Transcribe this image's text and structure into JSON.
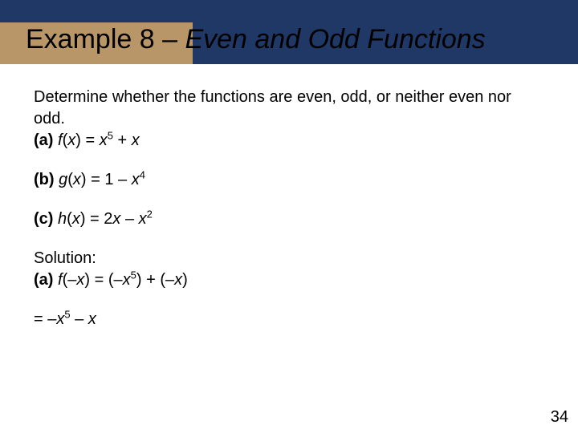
{
  "colors": {
    "header_dark": "#1f3866",
    "header_tan": "#b89668",
    "text": "#000000",
    "background": "#ffffff"
  },
  "header": {
    "title_prefix": "Example 8 – ",
    "title_italic": "Even and Odd Functions",
    "title_fontsize": 34
  },
  "body": {
    "fontsize": 20,
    "intro_text": "Determine whether the functions are even, odd, or neither even nor odd.",
    "part_a": {
      "label": "(a)",
      "fn": "f",
      "arg": "x",
      "rhs_plain": " = ",
      "term1_base": "x",
      "term1_exp": "5",
      "plus": " + ",
      "term2": "x"
    },
    "part_b": {
      "label": "(b)",
      "fn": "g",
      "arg": "x",
      "rhs_plain": " = 1 – ",
      "term1_base": "x",
      "term1_exp": "4"
    },
    "part_c": {
      "label": "(c)",
      "fn": "h",
      "arg": "x",
      "rhs_plain": " = 2",
      "mid_var": "x",
      "minus": " – ",
      "term1_base": "x",
      "term1_exp": "2"
    },
    "solution_label": "Solution:",
    "sol_a": {
      "label": "(a)",
      "fn": "f",
      "arg": "–x",
      "eq": " = (–",
      "t1_base": "x",
      "t1_exp": "5",
      "mid": ") + (–",
      "t2": "x",
      "end": ")"
    },
    "sol_a_line2": {
      "eq": "= –",
      "t1_base": "x",
      "t1_exp": "5",
      "minus": " – ",
      "t2": "x"
    }
  },
  "page_number": "34"
}
